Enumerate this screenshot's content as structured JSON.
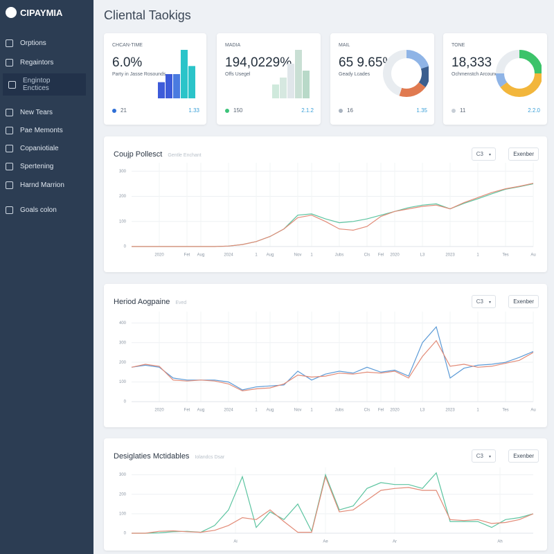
{
  "sidebar": {
    "brand": "CIPAYMIA",
    "items": [
      "Orptions",
      "Regaintors",
      "Engintop Enctices",
      "New Tears",
      "Pae Memonts",
      "Copaniotiale",
      "Spertening",
      "Harnd Marrion",
      "Goals colon"
    ]
  },
  "header": {
    "title": "Cliental Taokigs"
  },
  "cards": [
    {
      "label": "CHCAN-TIME",
      "value": "6.0%",
      "sub": "Party in Jasse Rosounds",
      "left": "21",
      "right": "1.33",
      "dot": "#2f6fd6",
      "mini": {
        "type": "bar",
        "values": [
          2,
          3,
          3,
          6,
          4
        ],
        "colors": [
          "#3d5bd9",
          "#3d5bd9",
          "#4a7be0",
          "#2bc4c9",
          "#2bc4c9"
        ]
      }
    },
    {
      "label": "MADIA",
      "value": "194,0229%",
      "sub": "Offs Usegel",
      "left": "150",
      "right": "2.1.2",
      "dot": "#3cc37a",
      "mini": {
        "type": "bar",
        "values": [
          2,
          3,
          5,
          7,
          4
        ],
        "colors": [
          "#cfe9dc",
          "#d6e8e0",
          "#e0e6ea",
          "#c9dfd4",
          "#b8d9c8"
        ]
      }
    },
    {
      "label": "MAIL",
      "value": "65 9.65%",
      "sub": "Geady Lcades",
      "left": "16",
      "right": "1.35",
      "dot": "#a9b3bf",
      "mini": {
        "type": "donut",
        "values": [
          20,
          15,
          20,
          45
        ],
        "colors": [
          "#8fb4e6",
          "#3b5f8f",
          "#e07a50",
          "#e8ecf0"
        ]
      }
    },
    {
      "label": "TONE",
      "value": "18,333",
      "sub": "Ochmenstch Arcound",
      "left": "11",
      "right": "2.2.0",
      "dot": "#c7ced6",
      "mini": {
        "type": "donut",
        "values": [
          25,
          40,
          10,
          25
        ],
        "colors": [
          "#3cc36a",
          "#f2b63c",
          "#8fb4e6",
          "#e8ecf0"
        ]
      }
    }
  ],
  "chart_data": [
    {
      "type": "line",
      "title": "Coujp Pollesct",
      "subtitle": "Gentle Enchant",
      "filter": "C3",
      "button": "Exenber",
      "grid": true,
      "x": [
        0,
        1,
        2,
        3,
        4,
        5,
        6,
        7,
        8,
        9,
        10,
        11,
        12,
        13,
        14,
        15,
        16,
        17,
        18,
        19,
        20,
        21,
        22,
        23,
        24,
        25,
        26,
        27,
        28,
        29
      ],
      "xlim": [
        0,
        29
      ],
      "xticks": [
        {
          "value": 2,
          "label": "2020"
        },
        {
          "value": 4,
          "label": "Fet"
        },
        {
          "value": 5,
          "label": "Aug"
        },
        {
          "value": 7,
          "label": "2024"
        },
        {
          "value": 9,
          "label": "1"
        },
        {
          "value": 10,
          "label": "Aug"
        },
        {
          "value": 12,
          "label": "Nov"
        },
        {
          "value": 13,
          "label": "1"
        },
        {
          "value": 15,
          "label": "Jubs"
        },
        {
          "value": 17,
          "label": "Cls"
        },
        {
          "value": 18,
          "label": "Fel"
        },
        {
          "value": 19,
          "label": "2020"
        },
        {
          "value": 21,
          "label": "L3"
        },
        {
          "value": 23,
          "label": "2023"
        },
        {
          "value": 25,
          "label": "1"
        },
        {
          "value": 27,
          "label": "Tes"
        },
        {
          "value": 29,
          "label": "Au"
        }
      ],
      "ylim": [
        0,
        320
      ],
      "yticks": [
        0,
        100,
        200,
        300
      ],
      "series": [
        {
          "color": "#5cc4a0",
          "values": [
            0,
            0,
            0,
            0,
            0,
            0,
            0,
            2,
            8,
            20,
            40,
            70,
            125,
            130,
            110,
            95,
            100,
            110,
            125,
            140,
            155,
            165,
            170,
            150,
            172,
            190,
            210,
            228,
            238,
            250
          ]
        },
        {
          "color": "#e28a76",
          "values": [
            0,
            0,
            0,
            0,
            0,
            0,
            0,
            2,
            8,
            20,
            40,
            70,
            115,
            125,
            100,
            70,
            65,
            80,
            120,
            140,
            150,
            160,
            165,
            150,
            175,
            195,
            215,
            230,
            240,
            252
          ]
        }
      ]
    },
    {
      "type": "line",
      "title": "Heriod Aogpaine",
      "subtitle": "Eved",
      "filter": "C3",
      "button": "Exenber",
      "grid": true,
      "x": [
        0,
        1,
        2,
        3,
        4,
        5,
        6,
        7,
        8,
        9,
        10,
        11,
        12,
        13,
        14,
        15,
        16,
        17,
        18,
        19,
        20,
        21,
        22,
        23,
        24,
        25,
        26,
        27,
        28,
        29
      ],
      "xlim": [
        0,
        29
      ],
      "xticks": [
        {
          "value": 2,
          "label": "2020"
        },
        {
          "value": 4,
          "label": "Fet"
        },
        {
          "value": 5,
          "label": "Aug"
        },
        {
          "value": 7,
          "label": "2024"
        },
        {
          "value": 9,
          "label": "1"
        },
        {
          "value": 10,
          "label": "Aug"
        },
        {
          "value": 12,
          "label": "Nov"
        },
        {
          "value": 13,
          "label": "1"
        },
        {
          "value": 15,
          "label": "Jubs"
        },
        {
          "value": 17,
          "label": "Cls"
        },
        {
          "value": 18,
          "label": "Fel"
        },
        {
          "value": 19,
          "label": "2020"
        },
        {
          "value": 21,
          "label": "L3"
        },
        {
          "value": 23,
          "label": "2023"
        },
        {
          "value": 25,
          "label": "1"
        },
        {
          "value": 27,
          "label": "Tes"
        },
        {
          "value": 29,
          "label": "Au"
        }
      ],
      "ylim": [
        0,
        440
      ],
      "yticks": [
        0,
        100,
        200,
        300,
        400
      ],
      "series": [
        {
          "color": "#5b9ad6",
          "values": [
            175,
            185,
            175,
            120,
            110,
            110,
            110,
            100,
            60,
            75,
            80,
            85,
            155,
            110,
            140,
            155,
            145,
            175,
            150,
            160,
            130,
            300,
            380,
            120,
            170,
            185,
            190,
            200,
            225,
            255
          ]
        },
        {
          "color": "#e28a76",
          "values": [
            175,
            190,
            180,
            110,
            105,
            110,
            105,
            90,
            55,
            65,
            70,
            90,
            135,
            125,
            130,
            145,
            140,
            150,
            145,
            155,
            120,
            230,
            310,
            180,
            190,
            175,
            180,
            195,
            210,
            250
          ]
        }
      ]
    },
    {
      "type": "line",
      "title": "Desiglaties Mctidables",
      "subtitle": "Iolandcs Dsar",
      "filter": "C3",
      "button": "Exenber",
      "grid": true,
      "x": [
        0,
        1,
        2,
        3,
        4,
        5,
        6,
        7,
        8,
        9,
        10,
        11,
        12,
        13,
        14,
        15,
        16,
        17,
        18,
        19,
        20,
        21,
        22,
        23,
        24,
        25,
        26,
        27,
        28,
        29
      ],
      "xlim": [
        0,
        29
      ],
      "xticks": [
        {
          "value": 7.5,
          "label": "Ai"
        },
        {
          "value": 14,
          "label": "Ae"
        },
        {
          "value": 19,
          "label": "Ar"
        },
        {
          "value": 26.6,
          "label": "Ah"
        }
      ],
      "ylim": [
        0,
        320
      ],
      "yticks": [
        0,
        100,
        200,
        300
      ],
      "series": [
        {
          "color": "#5cc4a0",
          "values": [
            0,
            0,
            2,
            8,
            10,
            5,
            40,
            120,
            290,
            30,
            110,
            70,
            150,
            10,
            300,
            120,
            140,
            230,
            260,
            250,
            250,
            230,
            310,
            60,
            60,
            60,
            30,
            70,
            80,
            100
          ]
        },
        {
          "color": "#e28a76",
          "values": [
            0,
            0,
            10,
            12,
            8,
            5,
            15,
            40,
            80,
            70,
            120,
            60,
            5,
            5,
            290,
            110,
            120,
            170,
            220,
            230,
            235,
            220,
            220,
            70,
            65,
            70,
            50,
            55,
            70,
            100
          ]
        }
      ]
    }
  ]
}
